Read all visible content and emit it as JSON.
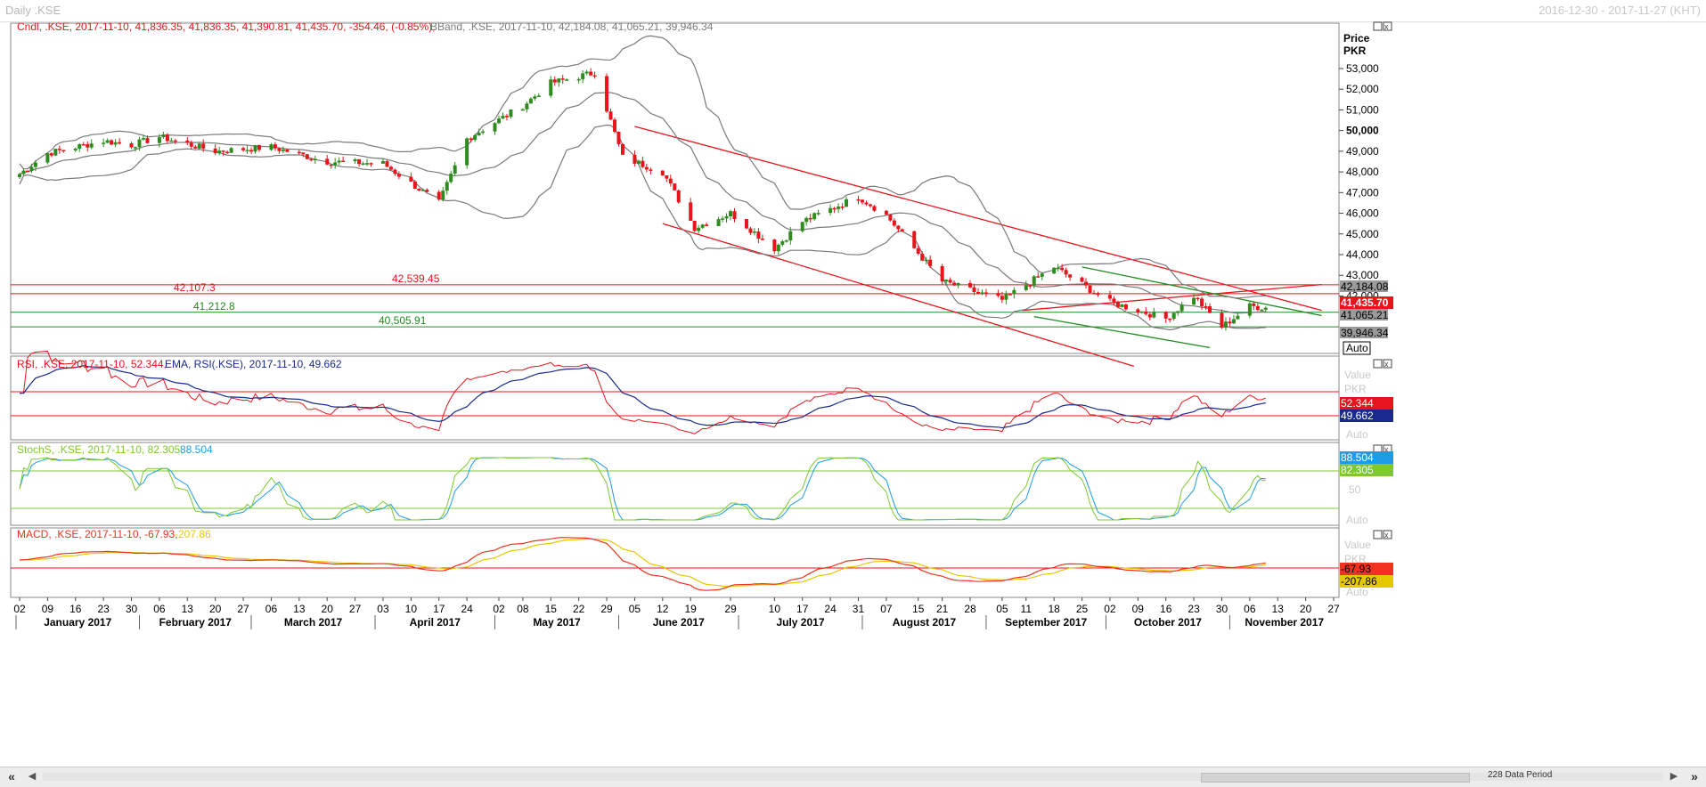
{
  "window": {
    "title": "Daily .KSE",
    "range": "2016-12-30 - 2017-11-27 (KHT)"
  },
  "colors": {
    "up": "#2e8b1e",
    "down": "#e8141b",
    "bband": "#7a7a7a",
    "rsi": "#e8141b",
    "rsi_ema": "#1a2a8c",
    "stoch_k": "#7ec832",
    "stoch_d": "#1e9be6",
    "macd": "#f0321e",
    "macd_signal": "#e6c800",
    "green_line": "#1e8c1e"
  },
  "price_panel": {
    "legend": {
      "cndl": "Cndl, .KSE, 2017-11-10, 41,836.35, 41,836.35, 41,390.81, 41,435.70, -354.46, (-0.85%),",
      "bband": "BBand, .KSE, 2017-11-10, 42,184.08, 41,065.21, 39,946.34"
    },
    "axis_title": [
      "Price",
      "PKR"
    ],
    "y_ticks": [
      "53,000",
      "52,000",
      "51,000",
      "50,000",
      "49,000",
      "48,000",
      "47,000",
      "46,000",
      "45,000",
      "44,000",
      "43,000",
      "42,000"
    ],
    "level_labels": [
      "42,539.45",
      "42,107.3",
      "41,212.8",
      "40,505.91"
    ],
    "right_tags": [
      "42,184.08",
      "41,435.70",
      "41,065.21",
      "39,946.34"
    ],
    "auto_label": "Auto"
  },
  "rsi_panel": {
    "legend_a": "RSI, .KSE, 2017-11-10, 52.344,",
    "legend_b": "EMA, RSI(.KSE), 2017-11-10, 49.662",
    "axis": [
      "Value",
      "PKR"
    ],
    "tags": [
      "52.344",
      "49.662"
    ],
    "auto_label": "Auto"
  },
  "stoch_panel": {
    "legend_a": "StochS, .KSE, 2017-11-10, 82.305,",
    "legend_b": "88.504",
    "tags": [
      "88.504",
      "82.305"
    ],
    "tick": "50",
    "auto_label": "Auto"
  },
  "macd_panel": {
    "legend_a": "MACD, .KSE, 2017-11-10, -67.93,",
    "legend_b": "-207.86",
    "axis": [
      "Value",
      "PKR"
    ],
    "tags": [
      "-67.93",
      "-207.86"
    ],
    "auto_label": "Auto"
  },
  "x_axis": {
    "day_ticks": [
      "02",
      "09",
      "16",
      "23",
      "30",
      "06",
      "13",
      "20",
      "27",
      "06",
      "13",
      "20",
      "27",
      "03",
      "10",
      "17",
      "24",
      "02",
      "08",
      "15",
      "22",
      "29",
      "05",
      "12",
      "19",
      "29",
      "10",
      "17",
      "24",
      "31",
      "07",
      "15",
      "21",
      "28",
      "05",
      "11",
      "18",
      "25",
      "02",
      "09",
      "16",
      "23",
      "30",
      "06",
      "13",
      "20",
      "27"
    ],
    "months": [
      "January 2017",
      "February 2017",
      "March 2017",
      "April 2017",
      "May 2017",
      "June 2017",
      "July 2017",
      "August 2017",
      "September 2017",
      "October 2017",
      "November 2017"
    ]
  },
  "scrollbar": {
    "data_period": "228 Data Period"
  },
  "chart_data": {
    "type": "candlestick",
    "title": "Daily .KSE",
    "x_range": [
      "2017-01-02",
      "2017-11-27"
    ],
    "ylim": [
      40000,
      53000
    ],
    "price_anchors": [
      {
        "date": "2017-01-02",
        "close": 47900
      },
      {
        "date": "2017-01-09",
        "close": 48900
      },
      {
        "date": "2017-01-23",
        "close": 49500
      },
      {
        "date": "2017-01-30",
        "close": 49300
      },
      {
        "date": "2017-02-06",
        "close": 49700
      },
      {
        "date": "2017-02-20",
        "close": 49000
      },
      {
        "date": "2017-03-06",
        "close": 49200
      },
      {
        "date": "2017-03-20",
        "close": 48500
      },
      {
        "date": "2017-04-03",
        "close": 48400
      },
      {
        "date": "2017-04-17",
        "close": 46500
      },
      {
        "date": "2017-04-24",
        "close": 49600
      },
      {
        "date": "2017-05-08",
        "close": 51200
      },
      {
        "date": "2017-05-15",
        "close": 52300
      },
      {
        "date": "2017-05-26",
        "close": 52800
      },
      {
        "date": "2017-06-02",
        "close": 48700
      },
      {
        "date": "2017-06-12",
        "close": 48000
      },
      {
        "date": "2017-06-20",
        "close": 45300
      },
      {
        "date": "2017-06-29",
        "close": 46000
      },
      {
        "date": "2017-07-10",
        "close": 44300
      },
      {
        "date": "2017-07-17",
        "close": 45600
      },
      {
        "date": "2017-07-31",
        "close": 46800
      },
      {
        "date": "2017-08-07",
        "close": 45900
      },
      {
        "date": "2017-08-21",
        "close": 42700
      },
      {
        "date": "2017-09-05",
        "close": 41800
      },
      {
        "date": "2017-09-18",
        "close": 43400
      },
      {
        "date": "2017-10-02",
        "close": 41700
      },
      {
        "date": "2017-10-16",
        "close": 40900
      },
      {
        "date": "2017-10-23",
        "close": 42000
      },
      {
        "date": "2017-10-30",
        "close": 40500
      },
      {
        "date": "2017-11-06",
        "close": 41500
      },
      {
        "date": "2017-11-10",
        "close": 41435.7
      }
    ],
    "last_candle": {
      "date": "2017-11-10",
      "open": 41836.35,
      "high": 41836.35,
      "low": 41390.81,
      "close": 41435.7,
      "change": -354.46,
      "change_pct": -0.85
    },
    "bollinger": {
      "upper": 42184.08,
      "middle": 41065.21,
      "lower": 39946.34
    },
    "horizontal_levels": [
      {
        "value": 42539.45,
        "color": "red"
      },
      {
        "value": 42107.3,
        "color": "red"
      },
      {
        "value": 41212.8,
        "color": "green"
      },
      {
        "value": 40505.91,
        "color": "green"
      }
    ],
    "indicators": {
      "rsi": 52.344,
      "rsi_ema": 49.662,
      "stoch_k": 82.305,
      "stoch_d": 88.504,
      "macd": -67.93,
      "macd_signal": -207.86
    },
    "grid": false
  }
}
